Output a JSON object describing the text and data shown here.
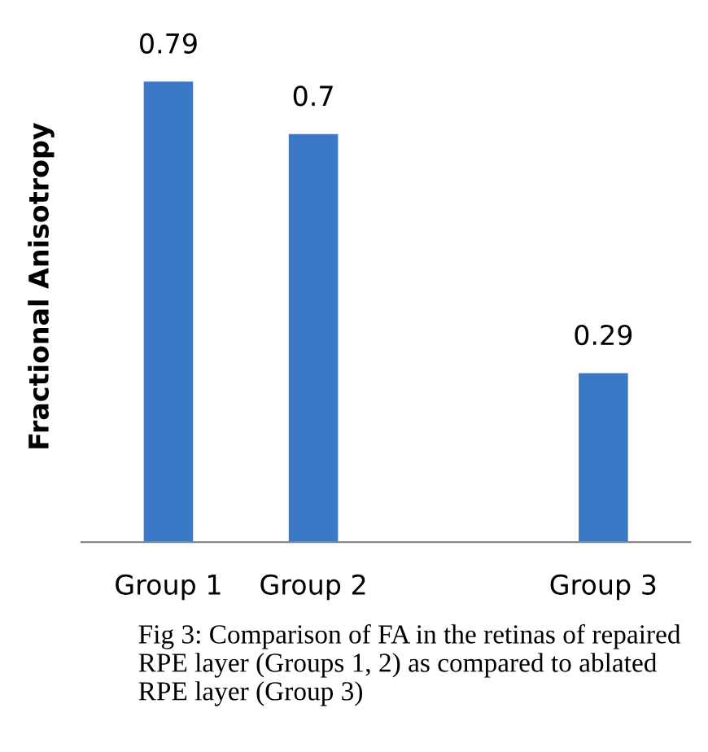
{
  "chart_data": {
    "type": "bar",
    "ylabel": "Fractional Anisotropy",
    "categories": [
      "Group 1",
      "Group 2",
      null,
      "Group 3"
    ],
    "values": [
      0.79,
      0.7,
      null,
      0.29
    ],
    "color": "#3b78c6",
    "data_labels": true,
    "grid": false,
    "legend": false,
    "annotations": [
      "Fig 3: Comparison of FA in the retinas of repaired RPE layer (Groups 1, 2) as compared to ablated RPE layer (Group 3)"
    ]
  }
}
